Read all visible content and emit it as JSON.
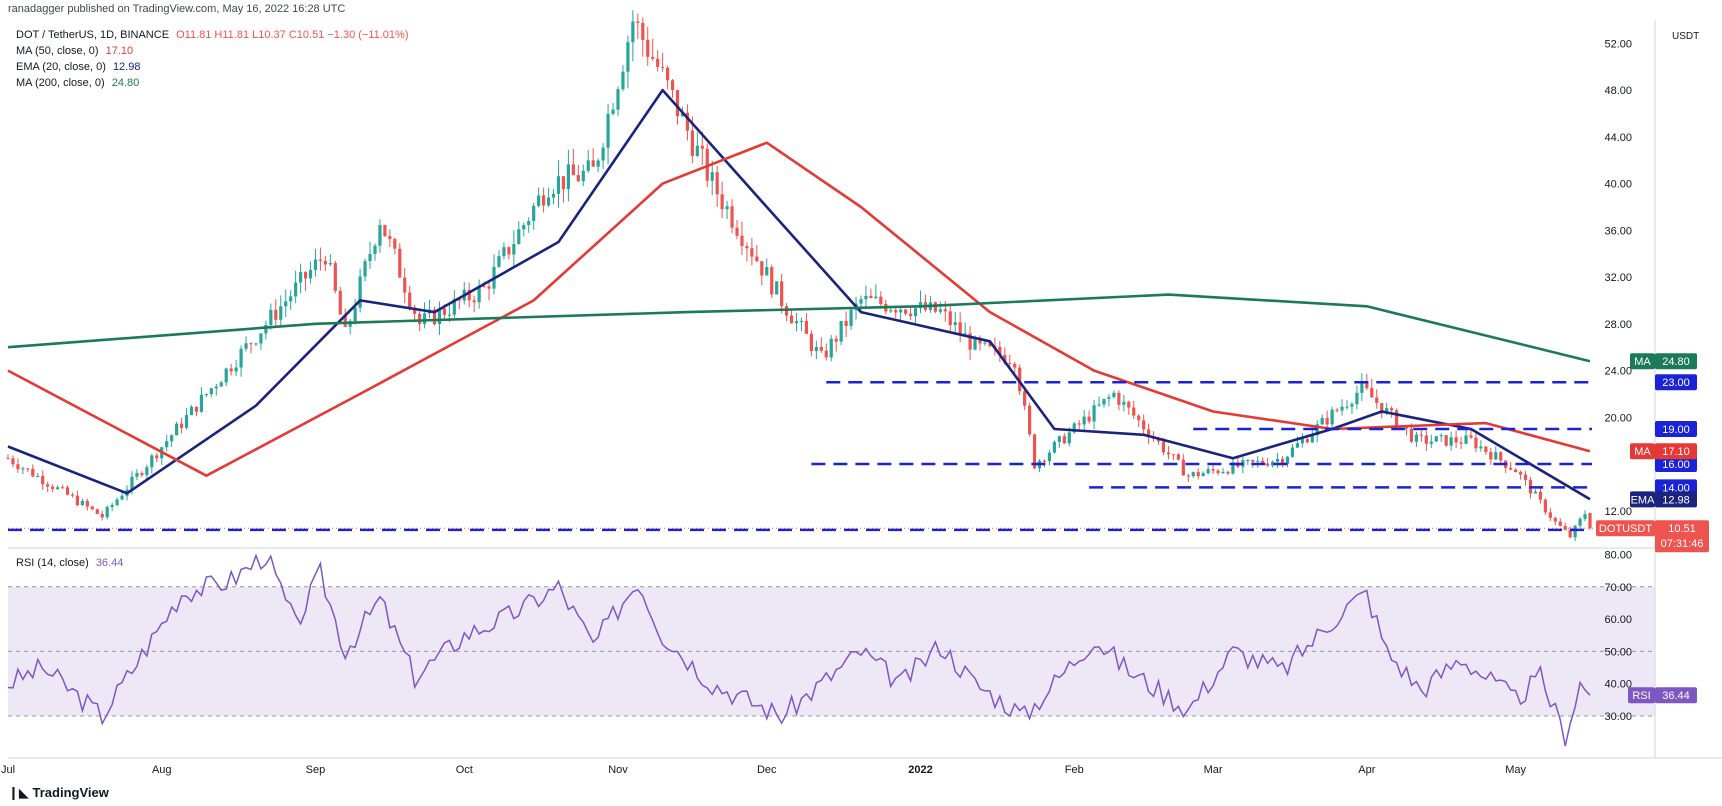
{
  "header": {
    "published": "ranadagger published on TradingView.com, May 16, 2022 16:28 UTC",
    "symbol": "DOT / TetherUS, 1D, BINANCE",
    "ohlc": "O11.81 H11.81 L10.37 C10.51 −1.30 (−11.01%)",
    "ma50": {
      "label": "MA (50, close, 0)",
      "value": "17.10"
    },
    "ema20": {
      "label": "EMA (20, close, 0)",
      "value": "12.98"
    },
    "ma200": {
      "label": "MA (200, close, 0)",
      "value": "24.80"
    },
    "rsi": {
      "label": "RSI (14, close)",
      "value": "36.44"
    },
    "currency": "USDT"
  },
  "footer": {
    "brand": "TradingView"
  },
  "colors": {
    "up": "#26a69a",
    "down": "#ef5350",
    "ema": "#1a237e",
    "ma50": "#e53935",
    "ma200": "#1b7a5a",
    "level": "#1a23d6",
    "rsi": "#7e57c2",
    "rsi_band": "#ede7f6"
  },
  "chart_data": [
    {
      "type": "candlestick",
      "title": "DOT / TetherUS, 1D, BINANCE",
      "x_tick_labels": [
        "Jul",
        "Aug",
        "Sep",
        "Oct",
        "Nov",
        "Dec",
        "2022",
        "Feb",
        "Mar",
        "Apr",
        "May"
      ],
      "y_tick_labels": [
        "52.00",
        "48.00",
        "44.00",
        "40.00",
        "36.00",
        "32.00",
        "28.00",
        "24.00",
        "20.00",
        "12.00"
      ],
      "ylim": [
        9.5,
        54
      ],
      "x_range": [
        "2021-07-01",
        "2022-05-16"
      ],
      "ohlc_last": {
        "open": 11.81,
        "high": 11.81,
        "low": 10.37,
        "close": 10.51
      },
      "price_anchors": [
        {
          "date": "2021-07-01",
          "price": 16.5
        },
        {
          "date": "2021-07-20",
          "price": 11.5
        },
        {
          "date": "2021-08-10",
          "price": 22
        },
        {
          "date": "2021-08-22",
          "price": 28
        },
        {
          "date": "2021-09-03",
          "price": 34
        },
        {
          "date": "2021-09-07",
          "price": 27
        },
        {
          "date": "2021-09-14",
          "price": 37
        },
        {
          "date": "2021-09-22",
          "price": 28
        },
        {
          "date": "2021-10-05",
          "price": 31
        },
        {
          "date": "2021-10-18",
          "price": 40
        },
        {
          "date": "2021-10-27",
          "price": 41
        },
        {
          "date": "2021-11-04",
          "price": 54
        },
        {
          "date": "2021-11-09",
          "price": 50
        },
        {
          "date": "2021-11-20",
          "price": 40
        },
        {
          "date": "2021-12-04",
          "price": 30
        },
        {
          "date": "2021-12-12",
          "price": 25
        },
        {
          "date": "2021-12-20",
          "price": 30
        },
        {
          "date": "2022-01-05",
          "price": 29
        },
        {
          "date": "2022-01-12",
          "price": 26
        },
        {
          "date": "2022-01-20",
          "price": 25
        },
        {
          "date": "2022-01-24",
          "price": 16
        },
        {
          "date": "2022-02-09",
          "price": 22
        },
        {
          "date": "2022-02-24",
          "price": 15
        },
        {
          "date": "2022-03-15",
          "price": 16.5
        },
        {
          "date": "2022-03-31",
          "price": 22.5
        },
        {
          "date": "2022-04-11",
          "price": 18
        },
        {
          "date": "2022-04-22",
          "price": 18
        },
        {
          "date": "2022-05-01",
          "price": 15.5
        },
        {
          "date": "2022-05-09",
          "price": 11
        },
        {
          "date": "2022-05-12",
          "price": 9.8
        },
        {
          "date": "2022-05-15",
          "price": 11.8
        },
        {
          "date": "2022-05-16",
          "price": 10.51
        }
      ],
      "series": [
        {
          "name": "EMA",
          "value": 12.98,
          "points": [
            {
              "date": "2021-07-01",
              "price": 17.5
            },
            {
              "date": "2021-07-25",
              "price": 13.5
            },
            {
              "date": "2021-08-20",
              "price": 21
            },
            {
              "date": "2021-09-10",
              "price": 30
            },
            {
              "date": "2021-09-25",
              "price": 29
            },
            {
              "date": "2021-10-20",
              "price": 35
            },
            {
              "date": "2021-11-10",
              "price": 48
            },
            {
              "date": "2021-12-01",
              "price": 38
            },
            {
              "date": "2021-12-20",
              "price": 29
            },
            {
              "date": "2022-01-15",
              "price": 26.5
            },
            {
              "date": "2022-01-28",
              "price": 19
            },
            {
              "date": "2022-02-15",
              "price": 18.5
            },
            {
              "date": "2022-03-05",
              "price": 16.5
            },
            {
              "date": "2022-03-25",
              "price": 19
            },
            {
              "date": "2022-04-04",
              "price": 20.5
            },
            {
              "date": "2022-04-22",
              "price": 19
            },
            {
              "date": "2022-05-16",
              "price": 12.98
            }
          ]
        },
        {
          "name": "MA",
          "value": 17.1,
          "points": [
            {
              "date": "2021-07-01",
              "price": 24
            },
            {
              "date": "2021-08-10",
              "price": 15
            },
            {
              "date": "2021-09-10",
              "price": 22
            },
            {
              "date": "2021-10-15",
              "price": 30
            },
            {
              "date": "2021-11-10",
              "price": 40
            },
            {
              "date": "2021-12-01",
              "price": 43.5
            },
            {
              "date": "2021-12-20",
              "price": 38
            },
            {
              "date": "2022-01-15",
              "price": 29
            },
            {
              "date": "2022-02-05",
              "price": 24
            },
            {
              "date": "2022-03-01",
              "price": 20.5
            },
            {
              "date": "2022-03-25",
              "price": 19
            },
            {
              "date": "2022-04-25",
              "price": 19.5
            },
            {
              "date": "2022-05-16",
              "price": 17.1
            }
          ]
        },
        {
          "name": "MA",
          "value": 24.8,
          "points": [
            {
              "date": "2021-07-01",
              "price": 26
            },
            {
              "date": "2021-09-01",
              "price": 28
            },
            {
              "date": "2021-11-15",
              "price": 29
            },
            {
              "date": "2022-01-01",
              "price": 29.5
            },
            {
              "date": "2022-02-20",
              "price": 30.5
            },
            {
              "date": "2022-04-01",
              "price": 29.5
            },
            {
              "date": "2022-05-16",
              "price": 24.8
            }
          ]
        }
      ],
      "levels": [
        {
          "label": "23.00",
          "value": 23.0,
          "from": "2021-12-13"
        },
        {
          "label": "19.00",
          "value": 19.0,
          "from": "2022-02-25"
        },
        {
          "label": "16.00",
          "value": 16.0,
          "from": "2021-12-10"
        },
        {
          "label": "14.00",
          "value": 14.0,
          "from": "2022-02-04"
        },
        {
          "label": "10.37",
          "value": 10.37,
          "from": "2021-07-01"
        }
      ],
      "price_badges": [
        {
          "label": "MA",
          "value": "24.80"
        },
        {
          "label": "MA",
          "value": "17.10"
        },
        {
          "label": "EMA",
          "value": "12.98"
        },
        {
          "label": "DOTUSDT",
          "value": "10.51",
          "countdown": "07:31:46"
        }
      ]
    },
    {
      "type": "line",
      "title": "RSI (14, close)",
      "y_tick_labels": [
        "80.00",
        "70.00",
        "60.00",
        "50.00",
        "40.00",
        "30.00"
      ],
      "ylim": [
        17,
        82
      ],
      "band": [
        30,
        70
      ],
      "last_value": 36.44,
      "series": [
        {
          "name": "RSI",
          "points": [
            {
              "date": "2021-07-01",
              "value": 40
            },
            {
              "date": "2021-07-08",
              "value": 45
            },
            {
              "date": "2021-07-20",
              "value": 30
            },
            {
              "date": "2021-08-05",
              "value": 68
            },
            {
              "date": "2021-08-15",
              "value": 72
            },
            {
              "date": "2021-08-22",
              "value": 80
            },
            {
              "date": "2021-08-28",
              "value": 58
            },
            {
              "date": "2021-09-02",
              "value": 74
            },
            {
              "date": "2021-09-07",
              "value": 50
            },
            {
              "date": "2021-09-14",
              "value": 66
            },
            {
              "date": "2021-09-21",
              "value": 42
            },
            {
              "date": "2021-10-01",
              "value": 55
            },
            {
              "date": "2021-10-10",
              "value": 61
            },
            {
              "date": "2021-10-20",
              "value": 70
            },
            {
              "date": "2021-10-27",
              "value": 52
            },
            {
              "date": "2021-11-05",
              "value": 72
            },
            {
              "date": "2021-11-10",
              "value": 55
            },
            {
              "date": "2021-11-20",
              "value": 40
            },
            {
              "date": "2021-12-04",
              "value": 30
            },
            {
              "date": "2021-12-20",
              "value": 50
            },
            {
              "date": "2021-12-28",
              "value": 40
            },
            {
              "date": "2022-01-05",
              "value": 52
            },
            {
              "date": "2022-01-12",
              "value": 40
            },
            {
              "date": "2022-01-22",
              "value": 30
            },
            {
              "date": "2022-02-05",
              "value": 54
            },
            {
              "date": "2022-02-12",
              "value": 44
            },
            {
              "date": "2022-02-24",
              "value": 32
            },
            {
              "date": "2022-03-05",
              "value": 50
            },
            {
              "date": "2022-03-15",
              "value": 44
            },
            {
              "date": "2022-03-28",
              "value": 64
            },
            {
              "date": "2022-04-01",
              "value": 68
            },
            {
              "date": "2022-04-05",
              "value": 50
            },
            {
              "date": "2022-04-12",
              "value": 38
            },
            {
              "date": "2022-04-20",
              "value": 48
            },
            {
              "date": "2022-05-01",
              "value": 35
            },
            {
              "date": "2022-05-06",
              "value": 42
            },
            {
              "date": "2022-05-11",
              "value": 24
            },
            {
              "date": "2022-05-14",
              "value": 40
            },
            {
              "date": "2022-05-16",
              "value": 36.44
            }
          ]
        }
      ]
    }
  ]
}
